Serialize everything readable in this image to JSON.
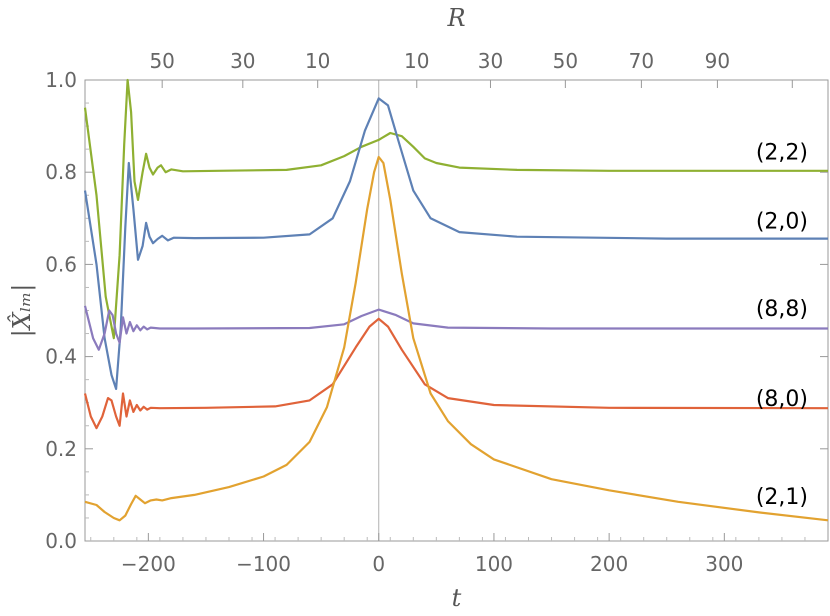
{
  "chart_data": {
    "type": "line",
    "xlabel": "t",
    "ylabel": "|X̂ₗₘ|",
    "top_axis_label": "R",
    "xlim": [
      -255,
      390
    ],
    "ylim": [
      0,
      1.0
    ],
    "x_ticks": [
      -200,
      -100,
      0,
      100,
      200,
      300
    ],
    "x_tick_labels": [
      "−200",
      "−100",
      "0",
      "100",
      "200",
      "300"
    ],
    "y_ticks": [
      0.0,
      0.2,
      0.4,
      0.6,
      0.8,
      1.0
    ],
    "y_tick_labels": [
      "0.0",
      "0.2",
      "0.4",
      "0.6",
      "0.8",
      "1.0"
    ],
    "top_ticks_t": [
      -188,
      -118,
      -53,
      33,
      97,
      162,
      228,
      294,
      359
    ],
    "top_tick_labels": [
      "50",
      "30",
      "10",
      "10",
      "30",
      "50",
      "70",
      "90"
    ],
    "top_tick_labels_t": [
      -188,
      -118,
      -53,
      33,
      97,
      162,
      228,
      294
    ],
    "vertical_reference_line_t": 0,
    "series": [
      {
        "name": "(2,2)",
        "color": "#8fb032",
        "points": [
          [
            -255,
            0.94
          ],
          [
            -245,
            0.75
          ],
          [
            -237,
            0.53
          ],
          [
            -230,
            0.44
          ],
          [
            -225,
            0.62
          ],
          [
            -221,
            0.86
          ],
          [
            -218,
            1.0
          ],
          [
            -215,
            0.93
          ],
          [
            -212,
            0.78
          ],
          [
            -209,
            0.74
          ],
          [
            -205,
            0.8
          ],
          [
            -202,
            0.84
          ],
          [
            -199,
            0.81
          ],
          [
            -196,
            0.795
          ],
          [
            -192,
            0.81
          ],
          [
            -189,
            0.815
          ],
          [
            -185,
            0.8
          ],
          [
            -180,
            0.806
          ],
          [
            -170,
            0.802
          ],
          [
            -140,
            0.803
          ],
          [
            -80,
            0.805
          ],
          [
            -50,
            0.815
          ],
          [
            -30,
            0.835
          ],
          [
            -15,
            0.855
          ],
          [
            0,
            0.87
          ],
          [
            10,
            0.885
          ],
          [
            20,
            0.878
          ],
          [
            30,
            0.855
          ],
          [
            40,
            0.83
          ],
          [
            50,
            0.82
          ],
          [
            70,
            0.81
          ],
          [
            120,
            0.805
          ],
          [
            200,
            0.803
          ],
          [
            390,
            0.803
          ]
        ]
      },
      {
        "name": "(2,0)",
        "color": "#5e81b5",
        "points": [
          [
            -255,
            0.76
          ],
          [
            -245,
            0.6
          ],
          [
            -238,
            0.44
          ],
          [
            -232,
            0.36
          ],
          [
            -228,
            0.33
          ],
          [
            -224,
            0.46
          ],
          [
            -220,
            0.68
          ],
          [
            -217,
            0.82
          ],
          [
            -213,
            0.72
          ],
          [
            -209,
            0.61
          ],
          [
            -205,
            0.64
          ],
          [
            -202,
            0.69
          ],
          [
            -199,
            0.66
          ],
          [
            -196,
            0.646
          ],
          [
            -192,
            0.655
          ],
          [
            -188,
            0.662
          ],
          [
            -183,
            0.652
          ],
          [
            -178,
            0.658
          ],
          [
            -160,
            0.657
          ],
          [
            -100,
            0.658
          ],
          [
            -60,
            0.665
          ],
          [
            -40,
            0.7
          ],
          [
            -25,
            0.78
          ],
          [
            -12,
            0.89
          ],
          [
            0,
            0.96
          ],
          [
            8,
            0.945
          ],
          [
            18,
            0.86
          ],
          [
            30,
            0.76
          ],
          [
            45,
            0.7
          ],
          [
            70,
            0.67
          ],
          [
            120,
            0.66
          ],
          [
            250,
            0.656
          ],
          [
            390,
            0.656
          ]
        ]
      },
      {
        "name": "(8,8)",
        "color": "#8b7bbd",
        "points": [
          [
            -255,
            0.51
          ],
          [
            -248,
            0.44
          ],
          [
            -243,
            0.415
          ],
          [
            -238,
            0.45
          ],
          [
            -234,
            0.5
          ],
          [
            -231,
            0.49
          ],
          [
            -228,
            0.45
          ],
          [
            -225,
            0.43
          ],
          [
            -222,
            0.485
          ],
          [
            -219,
            0.45
          ],
          [
            -216,
            0.475
          ],
          [
            -213,
            0.455
          ],
          [
            -210,
            0.468
          ],
          [
            -207,
            0.457
          ],
          [
            -204,
            0.465
          ],
          [
            -201,
            0.459
          ],
          [
            -198,
            0.463
          ],
          [
            -190,
            0.461
          ],
          [
            -160,
            0.461
          ],
          [
            -60,
            0.462
          ],
          [
            -30,
            0.47
          ],
          [
            -15,
            0.488
          ],
          [
            0,
            0.502
          ],
          [
            15,
            0.49
          ],
          [
            30,
            0.472
          ],
          [
            60,
            0.463
          ],
          [
            150,
            0.461
          ],
          [
            390,
            0.461
          ]
        ]
      },
      {
        "name": "(8,0)",
        "color": "#e0633a",
        "points": [
          [
            -255,
            0.32
          ],
          [
            -250,
            0.27
          ],
          [
            -245,
            0.245
          ],
          [
            -240,
            0.27
          ],
          [
            -235,
            0.31
          ],
          [
            -232,
            0.305
          ],
          [
            -228,
            0.27
          ],
          [
            -225,
            0.25
          ],
          [
            -222,
            0.32
          ],
          [
            -219,
            0.27
          ],
          [
            -216,
            0.305
          ],
          [
            -213,
            0.28
          ],
          [
            -210,
            0.295
          ],
          [
            -207,
            0.283
          ],
          [
            -204,
            0.291
          ],
          [
            -201,
            0.285
          ],
          [
            -198,
            0.289
          ],
          [
            -190,
            0.288
          ],
          [
            -150,
            0.289
          ],
          [
            -90,
            0.292
          ],
          [
            -60,
            0.305
          ],
          [
            -40,
            0.34
          ],
          [
            -20,
            0.42
          ],
          [
            -8,
            0.465
          ],
          [
            0,
            0.482
          ],
          [
            8,
            0.465
          ],
          [
            20,
            0.415
          ],
          [
            40,
            0.34
          ],
          [
            60,
            0.31
          ],
          [
            100,
            0.295
          ],
          [
            200,
            0.289
          ],
          [
            390,
            0.288
          ]
        ]
      },
      {
        "name": "(2,1)",
        "color": "#e2a230",
        "points": [
          [
            -255,
            0.085
          ],
          [
            -245,
            0.078
          ],
          [
            -238,
            0.063
          ],
          [
            -230,
            0.05
          ],
          [
            -225,
            0.045
          ],
          [
            -220,
            0.055
          ],
          [
            -215,
            0.08
          ],
          [
            -211,
            0.098
          ],
          [
            -207,
            0.09
          ],
          [
            -203,
            0.082
          ],
          [
            -198,
            0.088
          ],
          [
            -193,
            0.09
          ],
          [
            -188,
            0.088
          ],
          [
            -180,
            0.093
          ],
          [
            -160,
            0.1
          ],
          [
            -130,
            0.117
          ],
          [
            -100,
            0.14
          ],
          [
            -80,
            0.165
          ],
          [
            -60,
            0.215
          ],
          [
            -45,
            0.29
          ],
          [
            -30,
            0.42
          ],
          [
            -20,
            0.56
          ],
          [
            -10,
            0.72
          ],
          [
            -4,
            0.8
          ],
          [
            0,
            0.833
          ],
          [
            4,
            0.82
          ],
          [
            10,
            0.74
          ],
          [
            20,
            0.58
          ],
          [
            30,
            0.44
          ],
          [
            45,
            0.32
          ],
          [
            60,
            0.26
          ],
          [
            80,
            0.21
          ],
          [
            100,
            0.177
          ],
          [
            150,
            0.134
          ],
          [
            200,
            0.11
          ],
          [
            260,
            0.085
          ],
          [
            330,
            0.062
          ],
          [
            390,
            0.045
          ]
        ]
      }
    ],
    "series_labels": [
      {
        "text": "(2,2)",
        "anchor_y": 0.845
      },
      {
        "text": "(2,0)",
        "anchor_y": 0.695
      },
      {
        "text": "(8,8)",
        "anchor_y": 0.505
      },
      {
        "text": "(8,0)",
        "anchor_y": 0.31
      },
      {
        "text": "(2,1)",
        "anchor_y": 0.098
      }
    ]
  }
}
